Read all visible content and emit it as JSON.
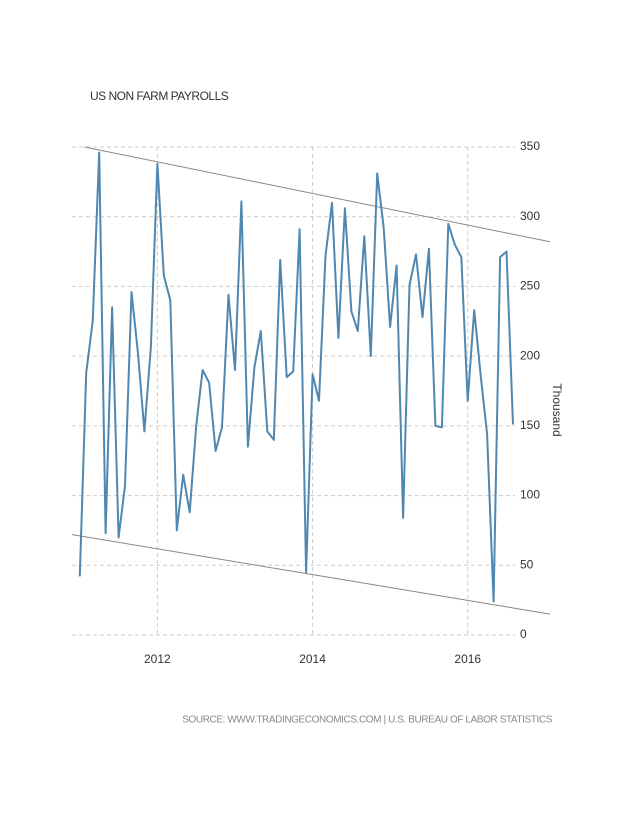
{
  "chart_data": {
    "type": "line",
    "title": "US NON FARM PAYROLLS",
    "y_label": "Thousand",
    "source": "SOURCE: WWW.TRADINGECONOMICS.COM | U.S. BUREAU OF LABOR STATISTICS",
    "x": [
      2011,
      2011.083,
      2011.167,
      2011.25,
      2011.333,
      2011.417,
      2011.5,
      2011.583,
      2011.667,
      2011.75,
      2011.833,
      2011.917,
      2012,
      2012.083,
      2012.167,
      2012.25,
      2012.333,
      2012.417,
      2012.5,
      2012.583,
      2012.667,
      2012.75,
      2012.833,
      2012.917,
      2013,
      2013.083,
      2013.167,
      2013.25,
      2013.333,
      2013.417,
      2013.5,
      2013.583,
      2013.667,
      2013.75,
      2013.833,
      2013.917,
      2014,
      2014.083,
      2014.167,
      2014.25,
      2014.333,
      2014.417,
      2014.5,
      2014.583,
      2014.667,
      2014.75,
      2014.833,
      2014.917,
      2015,
      2015.083,
      2015.167,
      2015.25,
      2015.333,
      2015.417,
      2015.5,
      2015.583,
      2015.667,
      2015.75,
      2015.833,
      2015.917,
      2016,
      2016.083,
      2016.167,
      2016.25,
      2016.333,
      2016.417,
      2016.5,
      2016.583
    ],
    "series": [
      {
        "name": "Non Farm Payrolls",
        "color": "#4f87b0",
        "values": [
          42,
          188,
          225,
          346,
          73,
          235,
          70,
          107,
          246,
          202,
          146,
          207,
          338,
          258,
          240,
          75,
          115,
          88,
          150,
          190,
          181,
          132,
          149,
          244,
          190,
          311,
          135,
          192,
          218,
          146,
          140,
          269,
          185,
          189,
          291,
          45,
          187,
          168,
          272,
          310,
          213,
          306,
          232,
          218,
          286,
          200,
          331,
          292,
          221,
          265,
          84,
          251,
          273,
          228,
          277,
          150,
          149,
          295,
          280,
          271,
          168,
          233,
          186,
          144,
          24,
          271,
          275,
          151
        ]
      }
    ],
    "trend_lines": [
      {
        "x": [
          2011.06,
          2017.06
        ],
        "y": [
          350,
          282
        ]
      },
      {
        "x": [
          2010.9,
          2017.06
        ],
        "y": [
          72,
          15
        ]
      }
    ],
    "xlim": [
      2010.9,
      2017.06
    ],
    "ylim": [
      0,
      350
    ],
    "xticks": [
      2012,
      2014,
      2016
    ],
    "yticks": [
      0,
      50,
      100,
      150,
      200,
      250,
      300,
      350
    ],
    "grid": true
  }
}
